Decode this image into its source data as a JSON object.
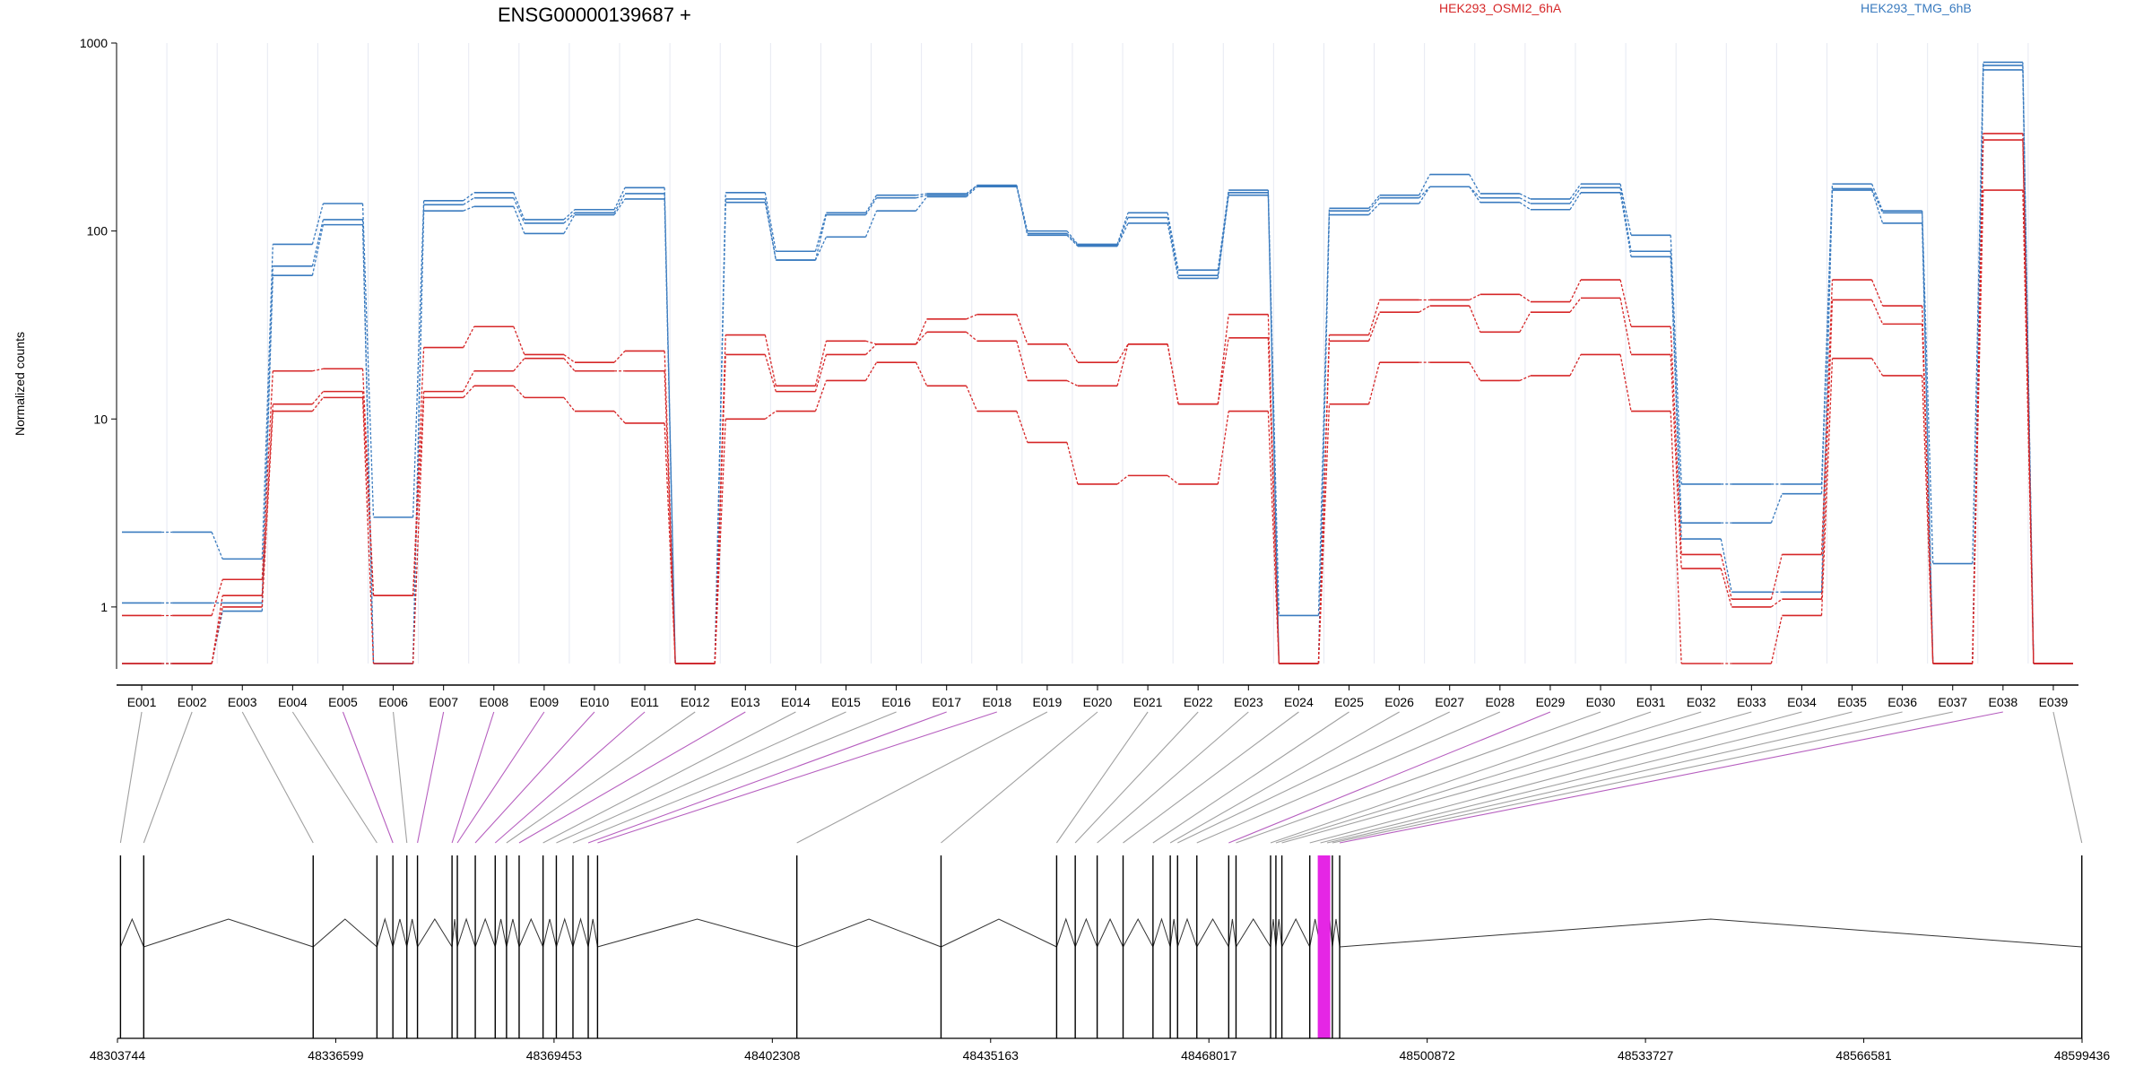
{
  "chart_data": {
    "type": "line",
    "title": "ENSG00000139687 +",
    "ylabel": "Normalized counts",
    "yscale": "log",
    "ylim": [
      0.5,
      1000
    ],
    "yticks": [
      1,
      10,
      100,
      1000
    ],
    "ytick_labels": [
      "1",
      "10",
      "100",
      "1000"
    ],
    "categories": [
      "E001",
      "E002",
      "E003",
      "E004",
      "E005",
      "E006",
      "E007",
      "E008",
      "E009",
      "E010",
      "E011",
      "E012",
      "E013",
      "E014",
      "E015",
      "E016",
      "E017",
      "E018",
      "E019",
      "E020",
      "E021",
      "E022",
      "E023",
      "E024",
      "E025",
      "E026",
      "E027",
      "E028",
      "E029",
      "E030",
      "E031",
      "E032",
      "E033",
      "E034",
      "E035",
      "E036",
      "E037",
      "E038",
      "E039"
    ],
    "legend": [
      {
        "label": "HEK293_OSMI2_6hA",
        "color": "#d62728"
      },
      {
        "label": "HEK293_TMG_6hB",
        "color": "#3a7bbf"
      }
    ],
    "series": [
      {
        "group": "HEK293_TMG_6hB",
        "color": "#3a7bbf",
        "values": [
          2.5,
          2.5,
          1.8,
          85,
          140,
          3.0,
          145,
          160,
          115,
          130,
          170,
          0.5,
          160,
          78,
          125,
          155,
          158,
          175,
          100,
          85,
          125,
          62,
          165,
          0.9,
          132,
          155,
          200,
          158,
          148,
          178,
          95,
          4.5,
          4.5,
          4.5,
          178,
          128,
          1.7,
          790,
          0.5
        ]
      },
      {
        "group": "HEK293_TMG_6hB",
        "color": "#3a7bbf",
        "values": [
          1.05,
          1.05,
          1.05,
          65,
          115,
          0.5,
          138,
          150,
          110,
          125,
          158,
          0.5,
          148,
          70,
          122,
          150,
          155,
          175,
          97,
          84,
          118,
          58,
          160,
          0.5,
          128,
          150,
          172,
          150,
          140,
          170,
          78,
          2.8,
          2.8,
          4.0,
          168,
          125,
          0.5,
          760,
          0.5
        ]
      },
      {
        "group": "HEK293_TMG_6hB",
        "color": "#3a7bbf",
        "values": [
          0.5,
          0.5,
          0.95,
          58,
          108,
          0.5,
          128,
          135,
          97,
          122,
          148,
          0.5,
          142,
          70,
          93,
          128,
          152,
          172,
          95,
          83,
          110,
          56,
          155,
          0.5,
          122,
          140,
          172,
          142,
          130,
          160,
          73,
          2.3,
          1.2,
          1.2,
          165,
          110,
          0.5,
          720,
          0.5
        ]
      },
      {
        "group": "HEK293_OSMI2_6hA",
        "color": "#d62728",
        "values": [
          0.9,
          0.9,
          1.4,
          18,
          18.5,
          1.15,
          24,
          31,
          22,
          20,
          23,
          0.5,
          28,
          15,
          26,
          25,
          34,
          36,
          25,
          20,
          25,
          12,
          36,
          0.5,
          28,
          43,
          43,
          46,
          42,
          55,
          31,
          1.9,
          1.1,
          1.9,
          55,
          40,
          0.5,
          330,
          0.5
        ]
      },
      {
        "group": "HEK293_OSMI2_6hA",
        "color": "#d62728",
        "values": [
          0.5,
          0.5,
          1.15,
          12,
          14,
          1.15,
          14,
          18,
          21,
          18,
          18,
          0.5,
          22,
          14,
          22,
          25,
          29,
          26,
          16,
          15,
          25,
          12,
          27,
          0.5,
          26,
          37,
          40,
          29,
          37,
          44,
          22,
          1.6,
          1.0,
          1.1,
          43,
          32,
          0.5,
          305,
          0.5
        ]
      },
      {
        "group": "HEK293_OSMI2_6hA",
        "color": "#d62728",
        "values": [
          0.5,
          0.5,
          1.0,
          11,
          13,
          0.5,
          13,
          15,
          13,
          11,
          9.5,
          0.5,
          10,
          11,
          16,
          20,
          15,
          11,
          7.5,
          4.5,
          5,
          4.5,
          11,
          0.5,
          12,
          20,
          20,
          16,
          17,
          22,
          11,
          0.5,
          0.5,
          0.9,
          21,
          17,
          0.5,
          165,
          0.5
        ]
      }
    ],
    "genomic_axis": {
      "tick_labels": [
        "48303744",
        "48336599",
        "48369453",
        "48402308",
        "48435163",
        "48468017",
        "48500872",
        "48533727",
        "48566581",
        "48599436"
      ],
      "range": [
        48303744,
        48599436
      ],
      "highlight_color": "#e526e5",
      "exon_positions": [
        48304200,
        48307700,
        48333200,
        48342800,
        48345200,
        48347300,
        48348900,
        48354100,
        48354900,
        48357600,
        48360600,
        48362300,
        48364200,
        48367800,
        48369800,
        48372300,
        48374600,
        48376000,
        48406000,
        48427700,
        48445100,
        48447900,
        48451200,
        48455100,
        48459600,
        48462200,
        48463300,
        48466200,
        48471000,
        48472100,
        48477300,
        48478100,
        48479000,
        48483200,
        48484800,
        48485800,
        48486600,
        48487700,
        48599400
      ],
      "highlighted_exons": [
        4,
        6,
        7,
        8,
        9,
        10,
        12,
        16,
        17,
        28,
        37
      ]
    }
  }
}
